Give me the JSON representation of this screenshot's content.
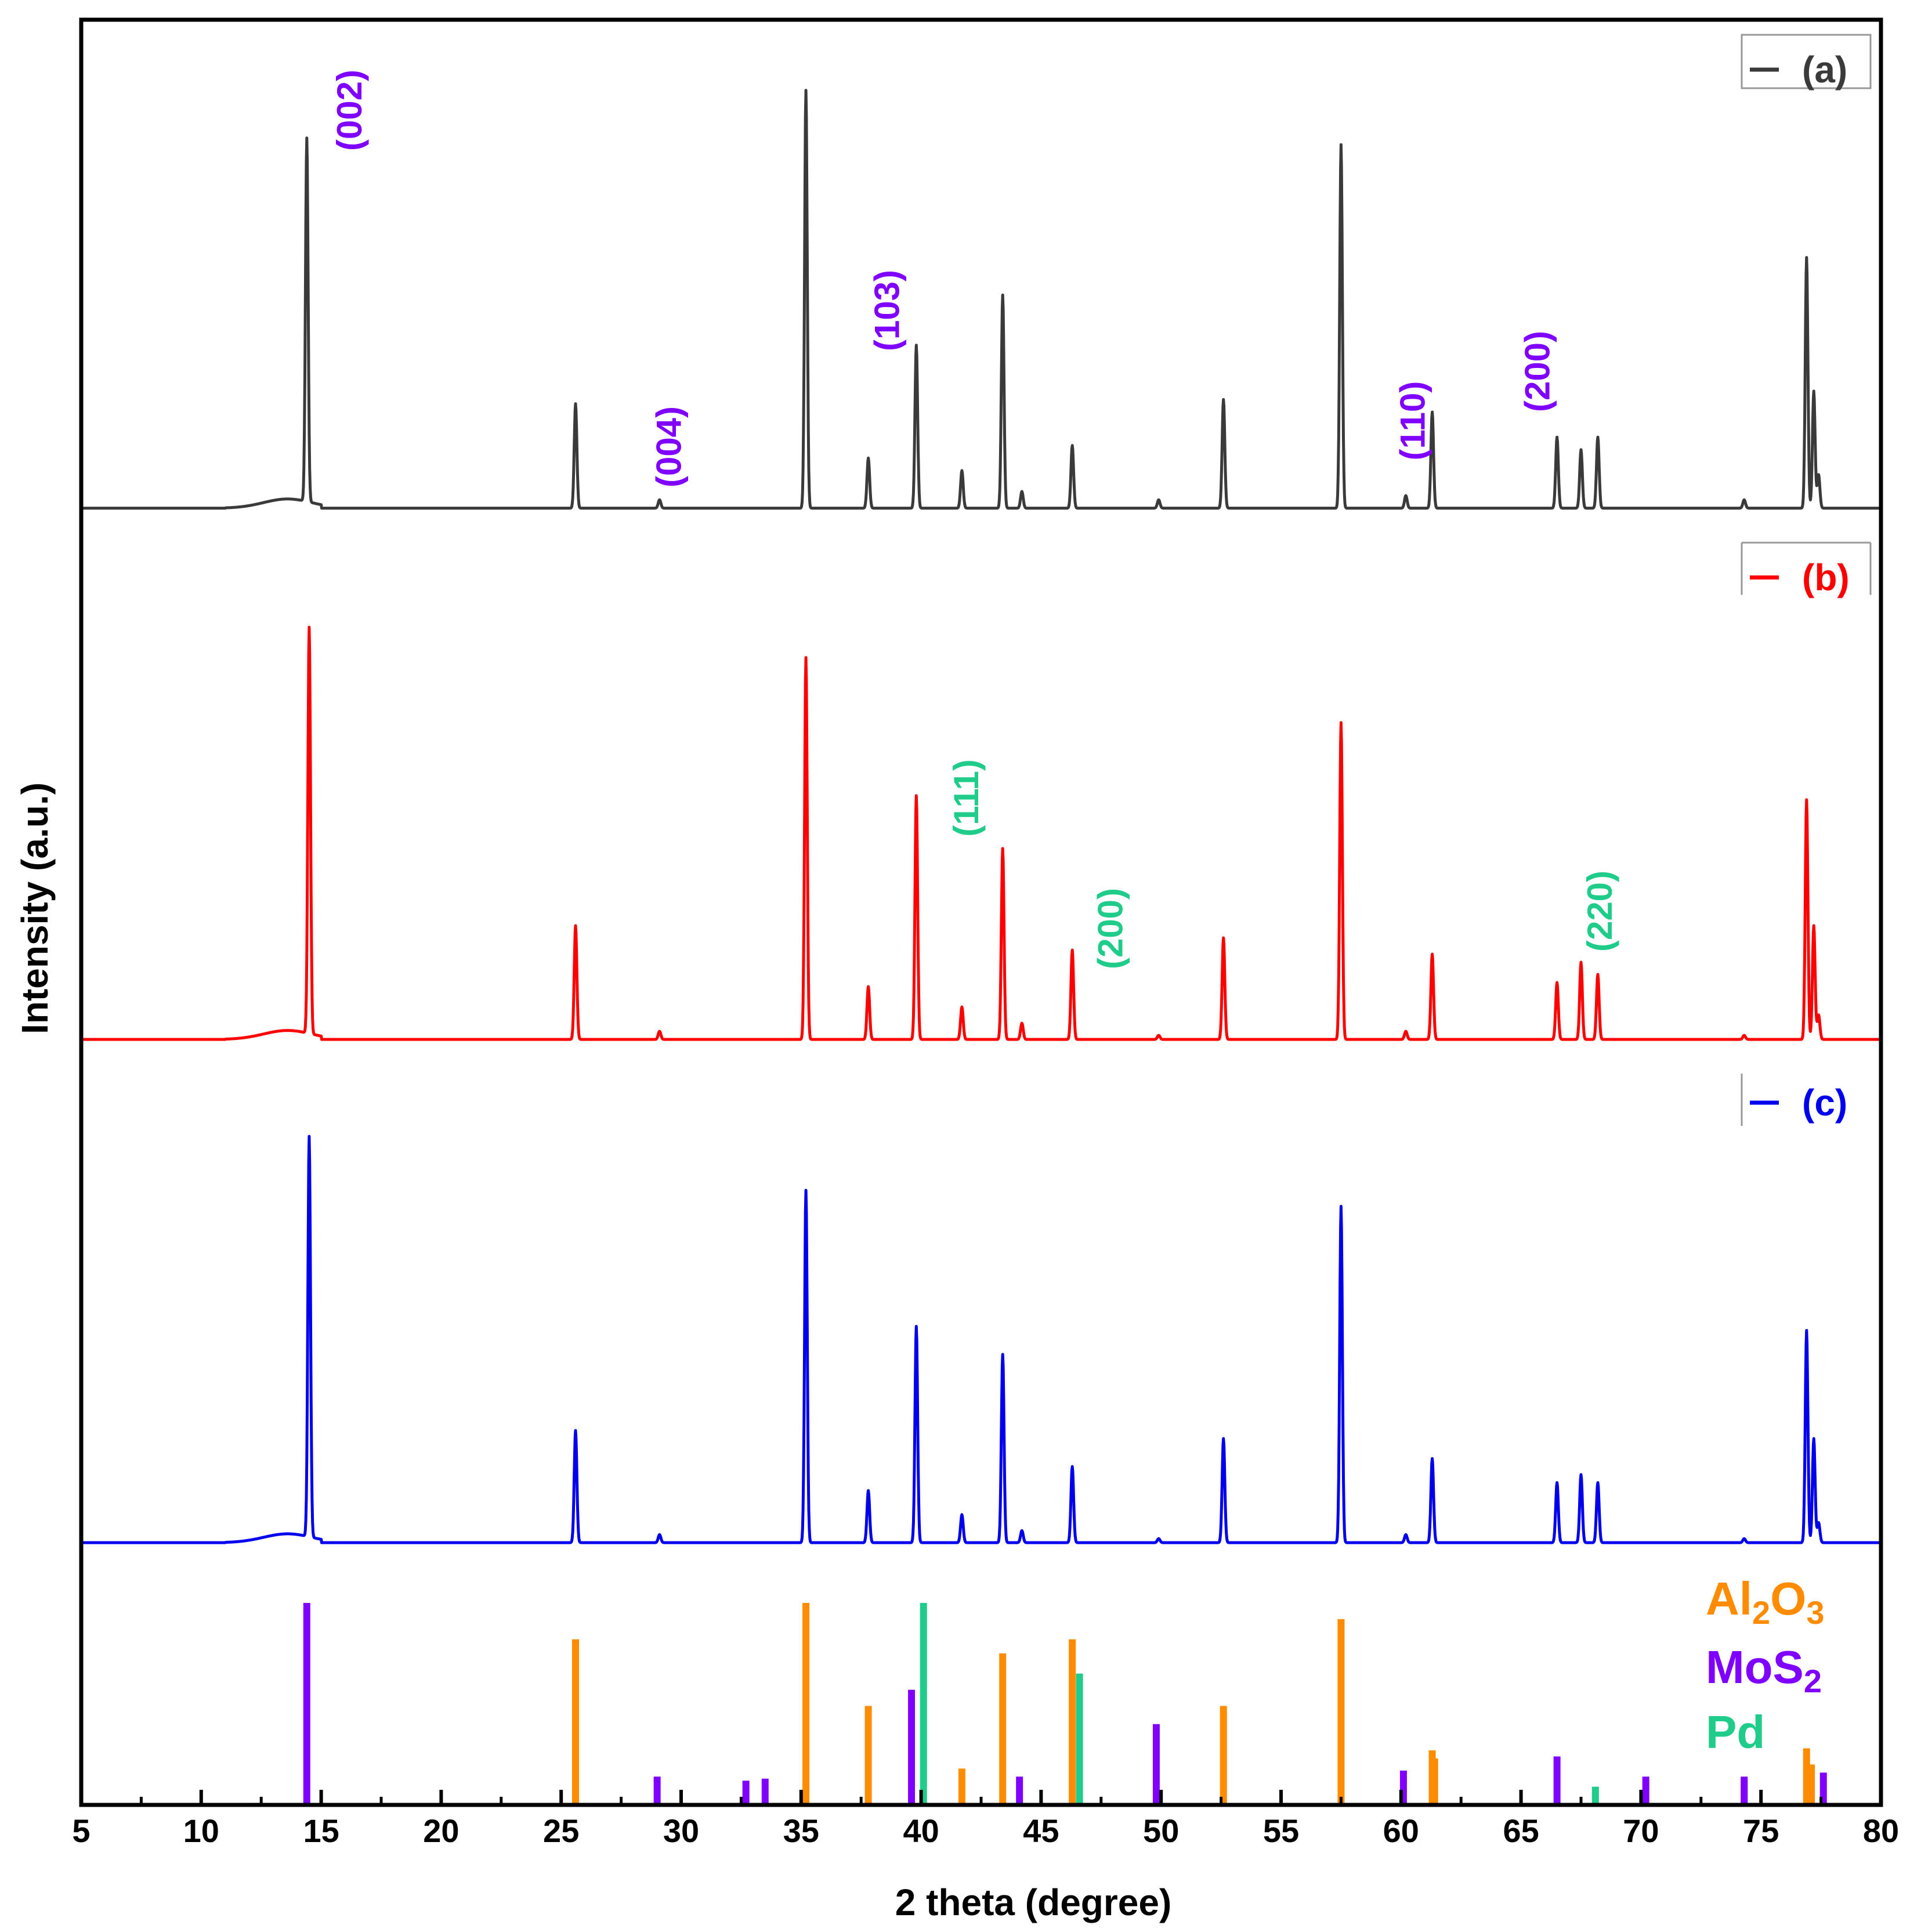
{
  "chart_data": {
    "type": "line",
    "xlabel": "2 theta (degree)",
    "ylabel": "Intensity (a.u.)",
    "xlim": [
      5,
      80
    ],
    "x_ticks": [
      5,
      10,
      15,
      20,
      25,
      30,
      35,
      40,
      45,
      50,
      55,
      60,
      65,
      70,
      75,
      80
    ],
    "intensity_scale": "relative intensity, 0 to 100",
    "series": [
      {
        "name": "(a)",
        "color": "#3a3a3a",
        "baseline": 2,
        "peaks": [
          {
            "x": 14.4,
            "y": 87
          },
          {
            "x": 25.6,
            "y": 25
          },
          {
            "x": 29.1,
            "y": 2
          },
          {
            "x": 35.2,
            "y": 100
          },
          {
            "x": 37.8,
            "y": 12
          },
          {
            "x": 39.8,
            "y": 39
          },
          {
            "x": 41.7,
            "y": 9
          },
          {
            "x": 43.4,
            "y": 51
          },
          {
            "x": 44.2,
            "y": 4
          },
          {
            "x": 46.3,
            "y": 15
          },
          {
            "x": 49.9,
            "y": 2
          },
          {
            "x": 52.6,
            "y": 26
          },
          {
            "x": 57.5,
            "y": 87
          },
          {
            "x": 60.2,
            "y": 3
          },
          {
            "x": 61.3,
            "y": 23
          },
          {
            "x": 66.5,
            "y": 17
          },
          {
            "x": 67.5,
            "y": 14
          },
          {
            "x": 68.2,
            "y": 17
          },
          {
            "x": 74.3,
            "y": 2
          },
          {
            "x": 76.9,
            "y": 60
          },
          {
            "x": 77.2,
            "y": 28
          },
          {
            "x": 77.4,
            "y": 8
          }
        ],
        "hkl_labels": [
          {
            "text": "(002)",
            "x": 16.2,
            "color": "#8000ff"
          },
          {
            "text": "(004)",
            "x": 29.5,
            "color": "#8000ff"
          },
          {
            "text": "(103)",
            "x": 38.6,
            "color": "#8000ff"
          },
          {
            "text": "(110)",
            "x": 60.5,
            "color": "#8000ff"
          },
          {
            "text": "(200)",
            "x": 65.7,
            "color": "#8000ff"
          }
        ]
      },
      {
        "name": "(b)",
        "color": "#ff0000",
        "baseline": 1,
        "peaks": [
          {
            "x": 14.5,
            "y": 100
          },
          {
            "x": 25.6,
            "y": 28
          },
          {
            "x": 29.1,
            "y": 2
          },
          {
            "x": 35.2,
            "y": 94
          },
          {
            "x": 37.8,
            "y": 13
          },
          {
            "x": 39.8,
            "y": 60
          },
          {
            "x": 41.7,
            "y": 8
          },
          {
            "x": 43.4,
            "y": 47
          },
          {
            "x": 44.2,
            "y": 4
          },
          {
            "x": 46.3,
            "y": 22
          },
          {
            "x": 49.9,
            "y": 1
          },
          {
            "x": 52.6,
            "y": 25
          },
          {
            "x": 57.5,
            "y": 78
          },
          {
            "x": 60.2,
            "y": 2
          },
          {
            "x": 61.3,
            "y": 21
          },
          {
            "x": 66.5,
            "y": 14
          },
          {
            "x": 67.5,
            "y": 19
          },
          {
            "x": 68.2,
            "y": 16
          },
          {
            "x": 74.3,
            "y": 1
          },
          {
            "x": 76.9,
            "y": 59
          },
          {
            "x": 77.2,
            "y": 28
          },
          {
            "x": 77.4,
            "y": 6
          }
        ],
        "hkl_labels": [
          {
            "text": "(111)",
            "x": 41.9,
            "color": "#1fcc8a"
          },
          {
            "text": "(200)",
            "x": 47.9,
            "color": "#1fcc8a"
          },
          {
            "text": "(220)",
            "x": 68.3,
            "color": "#1fcc8a"
          }
        ]
      },
      {
        "name": "(c)",
        "color": "#0000ee",
        "baseline": 1,
        "peaks": [
          {
            "x": 14.5,
            "y": 100
          },
          {
            "x": 25.6,
            "y": 28
          },
          {
            "x": 29.1,
            "y": 2
          },
          {
            "x": 35.2,
            "y": 88
          },
          {
            "x": 37.8,
            "y": 13
          },
          {
            "x": 39.8,
            "y": 54
          },
          {
            "x": 41.7,
            "y": 7
          },
          {
            "x": 43.4,
            "y": 47
          },
          {
            "x": 44.2,
            "y": 3
          },
          {
            "x": 46.3,
            "y": 19
          },
          {
            "x": 49.9,
            "y": 1
          },
          {
            "x": 52.6,
            "y": 26
          },
          {
            "x": 57.5,
            "y": 84
          },
          {
            "x": 60.2,
            "y": 2
          },
          {
            "x": 61.3,
            "y": 21
          },
          {
            "x": 66.5,
            "y": 15
          },
          {
            "x": 67.5,
            "y": 17
          },
          {
            "x": 68.2,
            "y": 15
          },
          {
            "x": 74.3,
            "y": 1
          },
          {
            "x": 76.9,
            "y": 53
          },
          {
            "x": 77.2,
            "y": 26
          },
          {
            "x": 77.4,
            "y": 5
          }
        ],
        "hkl_labels": []
      }
    ],
    "reference_patterns": [
      {
        "name": "Al2O3",
        "label_main": "Al",
        "label_sub1": "2",
        "label_mid": "O",
        "label_sub2": "3",
        "color": "#ff8c00",
        "lines": [
          {
            "x": 25.6,
            "y": 82
          },
          {
            "x": 35.2,
            "y": 100
          },
          {
            "x": 37.8,
            "y": 49
          },
          {
            "x": 41.7,
            "y": 18
          },
          {
            "x": 43.4,
            "y": 75
          },
          {
            "x": 46.3,
            "y": 82
          },
          {
            "x": 52.6,
            "y": 49
          },
          {
            "x": 57.5,
            "y": 92
          },
          {
            "x": 61.3,
            "y": 27
          },
          {
            "x": 61.4,
            "y": 23
          },
          {
            "x": 74.3,
            "y": 13
          },
          {
            "x": 76.9,
            "y": 28
          },
          {
            "x": 77.1,
            "y": 20
          }
        ]
      },
      {
        "name": "MoS2",
        "label_main": "MoS",
        "label_sub1": "2",
        "color": "#8000ff",
        "lines": [
          {
            "x": 14.4,
            "y": 100
          },
          {
            "x": 29.0,
            "y": 14
          },
          {
            "x": 32.7,
            "y": 12
          },
          {
            "x": 33.5,
            "y": 13
          },
          {
            "x": 39.6,
            "y": 57
          },
          {
            "x": 44.1,
            "y": 14
          },
          {
            "x": 49.8,
            "y": 40
          },
          {
            "x": 60.1,
            "y": 17
          },
          {
            "x": 66.5,
            "y": 24
          },
          {
            "x": 70.2,
            "y": 14
          },
          {
            "x": 74.3,
            "y": 14
          },
          {
            "x": 77.6,
            "y": 16
          }
        ]
      },
      {
        "name": "Pd",
        "label_main": "Pd",
        "color": "#1fcc8a",
        "lines": [
          {
            "x": 40.1,
            "y": 100
          },
          {
            "x": 46.6,
            "y": 65
          },
          {
            "x": 68.1,
            "y": 9
          }
        ]
      }
    ]
  }
}
